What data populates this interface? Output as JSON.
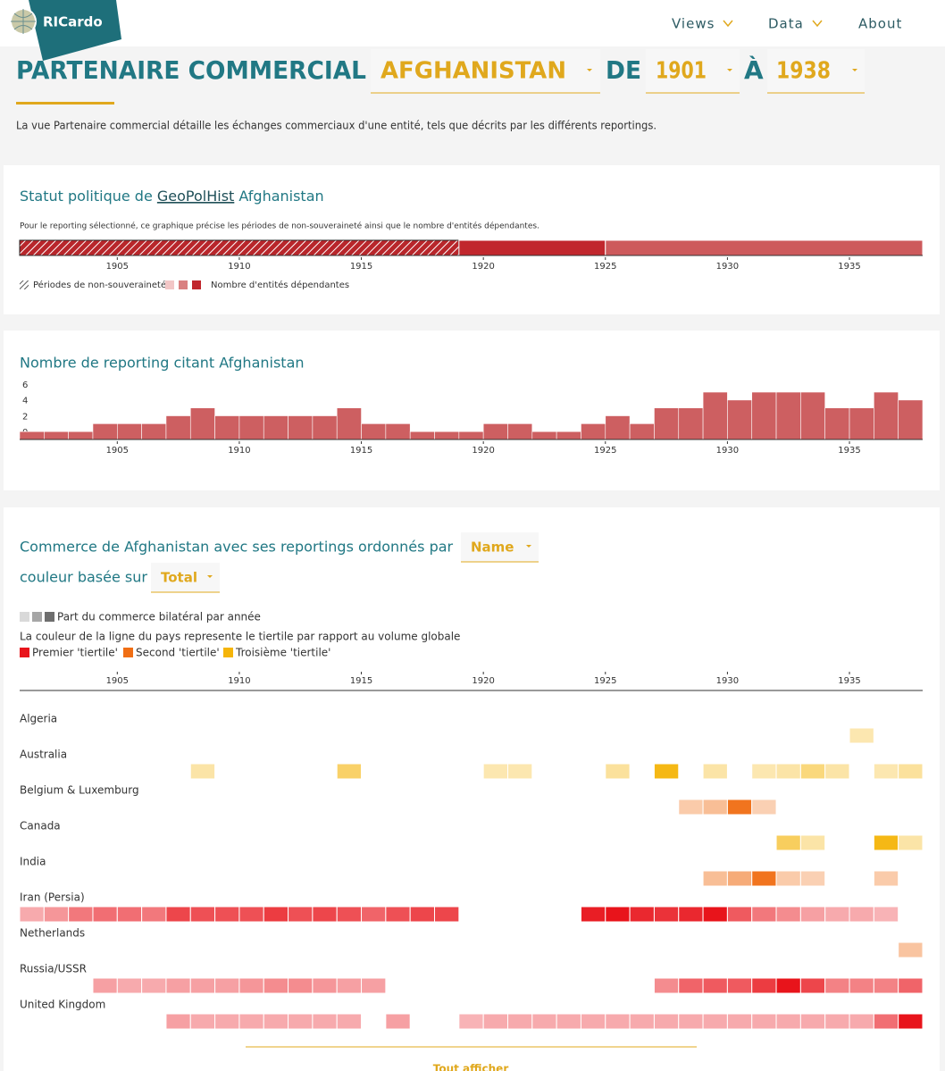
{
  "nav": {
    "brand": "RICardo",
    "items": [
      "Views",
      "Data",
      "About"
    ]
  },
  "header": {
    "title": "PARTENAIRE COMMERCIAL",
    "entity": "AFGHANISTAN",
    "from_label": "DE",
    "from": 1901,
    "to_label": "À",
    "to": 1938,
    "description": "La vue Partenaire commercial détaille les échanges commerciaux d'une entité, tels que décrits par les différents reportings."
  },
  "status_panel": {
    "title_prefix": "Statut politique de ",
    "link": "GeoPolHist",
    "title_suffix": " Afghanistan",
    "note": "Pour le reporting sélectionné, ce graphique précise les périodes de non-souveraineté ainsi que le nombre d'entités dépendantes.",
    "chart_data": {
      "type": "timeline",
      "xlim": [
        1901,
        1938
      ],
      "xticks": [
        1905,
        1910,
        1915,
        1920,
        1925,
        1930,
        1935
      ],
      "periods": [
        {
          "start": 1901,
          "end": 1919,
          "non_sovereign": true,
          "color": "#b8262b"
        },
        {
          "start": 1919,
          "end": 1925,
          "non_sovereign": false,
          "color": "#c1272d"
        },
        {
          "start": 1925,
          "end": 1938,
          "non_sovereign": false,
          "color": "#cd5a5c"
        }
      ],
      "legend": {
        "hatch_label": "Périodes de non-souveraineté",
        "colors": [
          "#f2c6c6",
          "#d98080",
          "#c1272d"
        ],
        "count_label": "Nombre d'entités dépendantes"
      }
    }
  },
  "count_panel": {
    "chart_data": {
      "type": "bar",
      "title": "Nombre de reporting citant Afghanistan",
      "color": "#cd5f61",
      "xlim": [
        1901,
        1938
      ],
      "xticks": [
        1905,
        1910,
        1915,
        1920,
        1925,
        1930,
        1935
      ],
      "ylim": [
        0,
        6
      ],
      "yticks": [
        0,
        2,
        4,
        6
      ],
      "x": [
        1901,
        1902,
        1903,
        1904,
        1905,
        1906,
        1907,
        1908,
        1909,
        1910,
        1911,
        1912,
        1913,
        1914,
        1915,
        1916,
        1917,
        1918,
        1919,
        1920,
        1921,
        1922,
        1923,
        1924,
        1925,
        1926,
        1927,
        1928,
        1929,
        1930,
        1931,
        1932,
        1933,
        1934,
        1935,
        1936,
        1937
      ],
      "values": [
        1,
        1,
        1,
        2,
        2,
        2,
        3,
        4,
        3,
        3,
        3,
        3,
        3,
        4,
        2,
        2,
        1,
        1,
        1,
        2,
        2,
        1,
        1,
        2,
        3,
        2,
        4,
        4,
        6,
        5,
        6,
        6,
        6,
        4,
        4,
        6,
        5
      ]
    }
  },
  "trade_panel": {
    "title": "Commerce de Afghanistan avec ses reportings ordonnés par",
    "order": "Name",
    "color_label": "couleur basée sur",
    "color_by": "Total",
    "chart_data": {
      "type": "heatmap",
      "xlim": [
        1901,
        1938
      ],
      "xticks": [
        1905,
        1910,
        1915,
        1920,
        1925,
        1930,
        1935
      ],
      "share_legend": {
        "colors": [
          "#d9d9d9",
          "#a6a6a6",
          "#6e6e6e"
        ],
        "label": "Part du commerce bilatéral par année"
      },
      "tertile_note": "La couleur de la ligne du pays represente le tiertile par rapport au volume globale",
      "tertiles": [
        {
          "name": "Premier 'tiertile'",
          "color": "#e8141b"
        },
        {
          "name": "Second 'tiertile'",
          "color": "#f06e14"
        },
        {
          "name": "Troisième 'tiertile'",
          "color": "#f5b50a"
        }
      ],
      "rows": [
        {
          "name": "Algeria",
          "tertile": 2,
          "years": [
            1935
          ],
          "values": [
            20
          ]
        },
        {
          "name": "Australia",
          "tertile": 2,
          "years": [
            1908,
            1914,
            1920,
            1921,
            1925,
            1927,
            1929,
            1931,
            1932,
            1933,
            1934,
            1936,
            1937
          ],
          "values": [
            25,
            55,
            20,
            20,
            30,
            95,
            25,
            20,
            25,
            45,
            25,
            20,
            30
          ]
        },
        {
          "name": "Belgium & Luxemburg",
          "tertile": 1,
          "years": [
            1928,
            1929,
            1930,
            1931
          ],
          "values": [
            25,
            35,
            95,
            20
          ]
        },
        {
          "name": "Canada",
          "tertile": 2,
          "years": [
            1932,
            1933,
            1936,
            1937
          ],
          "values": [
            60,
            25,
            95,
            25
          ]
        },
        {
          "name": "India",
          "tertile": 1,
          "years": [
            1929,
            1930,
            1931,
            1932,
            1933,
            1936
          ],
          "values": [
            35,
            50,
            95,
            25,
            20,
            25
          ]
        },
        {
          "name": "Iran (Persia)",
          "tertile": 0,
          "years": [
            1901,
            1902,
            1903,
            1904,
            1905,
            1906,
            1907,
            1908,
            1909,
            1910,
            1911,
            1912,
            1913,
            1914,
            1915,
            1916,
            1917,
            1918,
            1924,
            1925,
            1926,
            1927,
            1928,
            1929,
            1930,
            1931,
            1932,
            1933,
            1934,
            1935,
            1936
          ],
          "values": [
            25,
            35,
            50,
            55,
            55,
            50,
            75,
            70,
            70,
            70,
            80,
            70,
            75,
            70,
            60,
            70,
            75,
            75,
            95,
            100,
            90,
            85,
            90,
            100,
            65,
            50,
            40,
            30,
            25,
            25,
            20
          ]
        },
        {
          "name": "Netherlands",
          "tertile": 1,
          "years": [
            1937
          ],
          "values": [
            30
          ]
        },
        {
          "name": "Russia/USSR",
          "tertile": 0,
          "years": [
            1904,
            1905,
            1906,
            1907,
            1908,
            1909,
            1910,
            1911,
            1912,
            1913,
            1914,
            1915,
            1927,
            1928,
            1929,
            1930,
            1931,
            1932,
            1933,
            1934,
            1935,
            1936,
            1937
          ],
          "values": [
            30,
            25,
            25,
            30,
            30,
            30,
            35,
            40,
            40,
            35,
            30,
            30,
            40,
            60,
            65,
            65,
            80,
            100,
            75,
            45,
            45,
            45,
            60
          ]
        },
        {
          "name": "United Kingdom",
          "tertile": 0,
          "years": [
            1907,
            1908,
            1909,
            1910,
            1911,
            1912,
            1913,
            1914,
            1916,
            1919,
            1920,
            1921,
            1922,
            1923,
            1924,
            1925,
            1926,
            1927,
            1928,
            1929,
            1930,
            1931,
            1932,
            1933,
            1934,
            1935,
            1936,
            1937
          ],
          "values": [
            30,
            25,
            25,
            25,
            25,
            25,
            25,
            25,
            30,
            20,
            25,
            25,
            25,
            25,
            25,
            25,
            25,
            25,
            25,
            25,
            25,
            25,
            25,
            25,
            25,
            25,
            55,
            100
          ]
        }
      ]
    },
    "show_all": "Tout afficher"
  }
}
